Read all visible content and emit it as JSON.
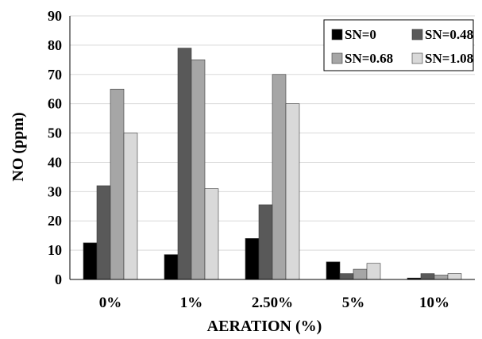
{
  "chart_data": {
    "type": "bar",
    "title": "",
    "xlabel": "AERATION (%)",
    "ylabel": "NO (ppm)",
    "categories": [
      "0%",
      "1%",
      "2.50%",
      "5%",
      "10%"
    ],
    "ylim": [
      0,
      90
    ],
    "yticks": [
      0,
      10,
      20,
      30,
      40,
      50,
      60,
      70,
      80,
      90
    ],
    "grid": true,
    "legend_position": "top-right",
    "series": [
      {
        "name": "SN=0",
        "color": "#000000",
        "values": [
          12.5,
          8.5,
          14,
          6,
          0.5
        ]
      },
      {
        "name": "SN=0.48",
        "color": "#595959",
        "values": [
          32,
          79,
          25.5,
          2,
          2
        ]
      },
      {
        "name": "SN=0.68",
        "color": "#a6a6a6",
        "values": [
          65,
          75,
          70,
          3.5,
          1.5
        ]
      },
      {
        "name": "SN=1.08",
        "color": "#d9d9d9",
        "values": [
          50,
          31,
          60,
          5.5,
          2
        ]
      }
    ]
  }
}
